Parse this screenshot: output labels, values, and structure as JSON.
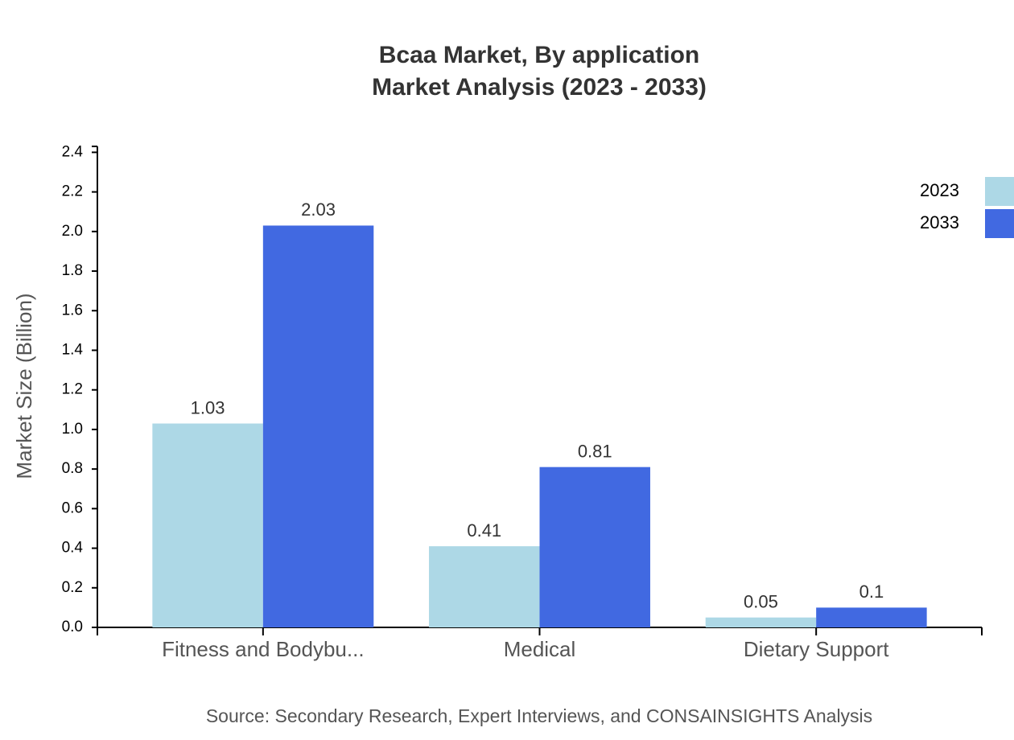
{
  "chart_data": {
    "type": "bar",
    "title": "Bcaa Market, By application",
    "subtitle": "Market Analysis (2023 - 2033)",
    "y_label": "Market Size (Billion)",
    "source": "Source: Secondary Research, Expert Interviews, and CONSAINSIGHTS Analysis",
    "categories": [
      "Fitness and Bodybu...",
      "Medical",
      "Dietary Support"
    ],
    "series": [
      {
        "name": "2023",
        "color": "#add8e6",
        "values": [
          1.03,
          0.41,
          0.05
        ]
      },
      {
        "name": "2033",
        "color": "#4169e1",
        "values": [
          2.03,
          0.81,
          0.1
        ]
      }
    ],
    "ylim": [
      0,
      2.43
    ],
    "yticks": [
      {
        "value": 0,
        "label": "0.0"
      },
      0.2,
      0.4,
      0.6,
      0.8,
      {
        "value": 1,
        "label": "1.0"
      },
      1.2,
      1.4,
      1.6,
      1.8,
      {
        "value": 2,
        "label": "2.0"
      },
      2.2,
      2.4
    ],
    "grid": false,
    "legend": "top-right"
  }
}
